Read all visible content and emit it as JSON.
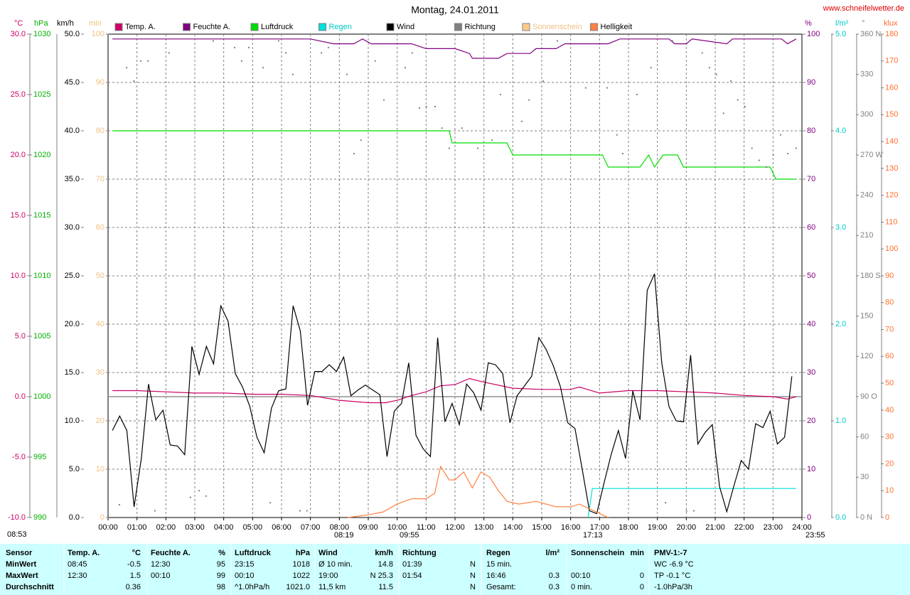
{
  "chart_data": {
    "type": "line",
    "title": "Montag, 24.01.2011",
    "source": "www.schneifelwetter.de",
    "legend": "top",
    "xlim": [
      0,
      24
    ],
    "xticks": [
      {
        "value": 0,
        "label": "00:00"
      },
      {
        "value": 1,
        "label": "01:00"
      },
      {
        "value": 2,
        "label": "02:00"
      },
      {
        "value": 3,
        "label": "03:00"
      },
      {
        "value": 4,
        "label": "04:00"
      },
      {
        "value": 5,
        "label": "05:00"
      },
      {
        "value": 6,
        "label": "06:00"
      },
      {
        "value": 7,
        "label": "07:00"
      },
      {
        "value": 8,
        "label": "08:00"
      },
      {
        "value": 9,
        "label": "09:00"
      },
      {
        "value": 10,
        "label": "10:00"
      },
      {
        "value": 11,
        "label": "11:00"
      },
      {
        "value": 12,
        "label": "12:00"
      },
      {
        "value": 13,
        "label": "13:00"
      },
      {
        "value": 14,
        "label": "14:00"
      },
      {
        "value": 15,
        "label": "15:00"
      },
      {
        "value": 16,
        "label": "16:00"
      },
      {
        "value": 17,
        "label": "17:00"
      },
      {
        "value": 18,
        "label": "18:00"
      },
      {
        "value": 19,
        "label": "19:00"
      },
      {
        "value": 20,
        "label": "20:00"
      },
      {
        "value": 21,
        "label": "21:00"
      },
      {
        "value": 22,
        "label": "22:00"
      },
      {
        "value": 23,
        "label": "23:00"
      },
      {
        "value": 24,
        "label": "24:00"
      }
    ],
    "xgrid": true,
    "yaxes": [
      {
        "label": "°C",
        "color": "#cc0066",
        "lim": [
          -10,
          30
        ],
        "zero_line": true,
        "ticks": [
          {
            "value": -10,
            "label": "-10.0"
          },
          {
            "value": -5,
            "label": "-5.0"
          },
          {
            "value": 0,
            "label": "0.0"
          },
          {
            "value": 5,
            "label": "5.0"
          },
          {
            "value": 10,
            "label": "10.0"
          },
          {
            "value": 15,
            "label": "15.0"
          },
          {
            "value": 20,
            "label": "20.0"
          },
          {
            "value": 25,
            "label": "25.0"
          },
          {
            "value": 30,
            "label": "30.0"
          }
        ]
      },
      {
        "label": "hPa",
        "color": "#00b000",
        "lim": [
          990,
          1030
        ],
        "ticks": [
          990,
          995,
          1000,
          1005,
          1010,
          1015,
          1020,
          1025,
          1030
        ]
      },
      {
        "label": "km/h",
        "color": "#000000",
        "lim": [
          0,
          50
        ],
        "grid": true,
        "ticks": [
          {
            "value": 0,
            "label": "0.0"
          },
          {
            "value": 5,
            "label": "5.0"
          },
          {
            "value": 10,
            "label": "10.0"
          },
          {
            "value": 15,
            "label": "15.0"
          },
          {
            "value": 20,
            "label": "20.0"
          },
          {
            "value": 25,
            "label": "25.0"
          },
          {
            "value": 30,
            "label": "30.0"
          },
          {
            "value": 35,
            "label": "35.0"
          },
          {
            "value": 40,
            "label": "40.0"
          },
          {
            "value": 45,
            "label": "45.0"
          },
          {
            "value": 50,
            "label": "50.0"
          }
        ]
      },
      {
        "label": "min",
        "color": "#f0c080",
        "lim": [
          0,
          100
        ],
        "ticks": [
          0,
          10,
          20,
          30,
          40,
          50,
          60,
          70,
          80,
          90,
          100
        ]
      },
      {
        "label": "%",
        "color": "#800080",
        "lim": [
          0,
          100
        ],
        "ticks": [
          0,
          10,
          20,
          30,
          40,
          50,
          60,
          70,
          80,
          90,
          100
        ]
      },
      {
        "label": "l/m²",
        "color": "#00c8c8",
        "lim": [
          0,
          5
        ],
        "ticks": [
          {
            "value": 0,
            "label": "0.0"
          },
          {
            "value": 1,
            "label": "1.0"
          },
          {
            "value": 2,
            "label": "2.0"
          },
          {
            "value": 3,
            "label": "3.0"
          },
          {
            "value": 4,
            "label": "4.0"
          },
          {
            "value": 5,
            "label": "5.0"
          }
        ]
      },
      {
        "label": "°",
        "color": "#808080",
        "lim": [
          0,
          360
        ],
        "ticks": [
          {
            "value": 0,
            "label": "0 N"
          },
          30,
          60,
          {
            "value": 90,
            "label": "90 O"
          },
          120,
          150,
          {
            "value": 180,
            "label": "180 S"
          },
          210,
          240,
          {
            "value": 270,
            "label": "270 W"
          },
          300,
          330,
          {
            "value": 360,
            "label": "360 N"
          }
        ]
      },
      {
        "label": "klux",
        "color": "#ff7030",
        "lim": [
          0,
          180
        ],
        "ticks": [
          0,
          10,
          20,
          30,
          40,
          50,
          60,
          70,
          80,
          90,
          100,
          110,
          120,
          130,
          140,
          150,
          160,
          170,
          180
        ]
      }
    ],
    "series": [
      {
        "name": "Temp. A.",
        "color": "#cc0066",
        "axis": 0,
        "style": "line",
        "x": [
          0.15,
          1,
          2,
          3,
          4,
          5,
          6,
          7,
          8,
          9,
          9.6,
          10,
          10.5,
          11,
          11.5,
          12,
          12.5,
          13,
          14,
          15,
          16,
          16.3,
          17,
          18,
          19,
          20,
          21,
          22,
          23,
          23.5,
          23.8
        ],
        "values": [
          0.5,
          0.5,
          0.4,
          0.3,
          0.3,
          0.2,
          0.2,
          0.1,
          -0.3,
          -0.5,
          -0.5,
          -0.3,
          0.1,
          0.4,
          0.9,
          1.0,
          1.5,
          1.2,
          0.7,
          0.6,
          0.6,
          0.8,
          0.3,
          0.5,
          0.5,
          0.4,
          0.3,
          0.1,
          0.0,
          -0.2,
          0.0
        ]
      },
      {
        "name": "Feuchte A.",
        "color": "#800080",
        "axis": 4,
        "style": "line",
        "x": [
          0.15,
          7.0,
          7.8,
          8.5,
          8.8,
          9.1,
          10.5,
          11.0,
          12.0,
          12.5,
          12.6,
          13.5,
          13.8,
          14.6,
          14.8,
          15.5,
          15.8,
          17.3,
          17.7,
          19.4,
          19.6,
          20.0,
          20.2,
          21.4,
          21.6,
          23.3,
          23.5,
          23.8
        ],
        "values": [
          99,
          99,
          98,
          98,
          99,
          98,
          98,
          97,
          97,
          96,
          95,
          95,
          96,
          96,
          97,
          97,
          98,
          98,
          99,
          99,
          98,
          98,
          99,
          98,
          99,
          99,
          98,
          99
        ]
      },
      {
        "name": "Luftdruck",
        "color": "#00dd00",
        "axis": 1,
        "style": "line",
        "x": [
          0.15,
          11.8,
          11.9,
          13.8,
          14.0,
          17.1,
          17.3,
          18.4,
          18.7,
          18.9,
          19.2,
          19.7,
          19.9,
          22.9,
          23.1,
          23.8
        ],
        "values": [
          1022,
          1022,
          1021,
          1021,
          1020,
          1020,
          1019,
          1019,
          1020,
          1019,
          1020,
          1020,
          1019,
          1019,
          1018,
          1018
        ]
      },
      {
        "name": "Regen",
        "color": "#00e0e0",
        "axis": 5,
        "style": "line",
        "x": [
          16.6,
          16.75,
          23.8
        ],
        "values": [
          0.0,
          0.3,
          0.3
        ]
      },
      {
        "name": "Wind",
        "color": "#000000",
        "axis": 2,
        "style": "line",
        "x": [
          0.15,
          0.4,
          0.65,
          0.9,
          1.15,
          1.4,
          1.65,
          1.9,
          2.15,
          2.4,
          2.65,
          2.9,
          3.15,
          3.4,
          3.65,
          3.9,
          4.15,
          4.4,
          4.65,
          4.9,
          5.15,
          5.4,
          5.65,
          5.9,
          6.15,
          6.4,
          6.65,
          6.9,
          7.15,
          7.4,
          7.65,
          7.9,
          8.15,
          8.4,
          8.65,
          8.9,
          9.15,
          9.4,
          9.65,
          9.9,
          10.15,
          10.4,
          10.65,
          10.9,
          11.15,
          11.4,
          11.65,
          11.9,
          12.15,
          12.4,
          12.65,
          12.9,
          13.15,
          13.4,
          13.65,
          13.9,
          14.15,
          14.4,
          14.65,
          14.9,
          15.15,
          15.4,
          15.65,
          15.9,
          16.15,
          16.4,
          16.65,
          16.9,
          17.15,
          17.4,
          17.65,
          17.9,
          18.15,
          18.4,
          18.65,
          18.9,
          19.15,
          19.4,
          19.65,
          19.9,
          20.15,
          20.4,
          20.65,
          20.9,
          21.15,
          21.4,
          21.65,
          21.9,
          22.15,
          22.4,
          22.65,
          22.9,
          23.15,
          23.4,
          23.65
        ],
        "values": [
          9.0,
          10.5,
          9.0,
          1.1,
          6.1,
          13.8,
          10.1,
          11.1,
          7.5,
          7.4,
          6.5,
          17.7,
          14.8,
          17.7,
          15.9,
          21.9,
          20.3,
          14.9,
          13.5,
          11.5,
          8.3,
          6.7,
          11.3,
          13.1,
          13.3,
          21.9,
          19.3,
          11.6,
          15.1,
          15.1,
          15.8,
          15.1,
          16.6,
          12.6,
          13.2,
          13.7,
          13.2,
          12.7,
          6.3,
          11.0,
          11.8,
          16.0,
          8.5,
          7.1,
          6.3,
          18.6,
          9.9,
          11.8,
          9.6,
          13.8,
          12.9,
          11.1,
          16.0,
          15.8,
          14.9,
          9.8,
          12.6,
          13.6,
          14.6,
          18.6,
          17.4,
          15.7,
          13.5,
          9.8,
          9.2,
          5.0,
          0.7,
          0.4,
          3.5,
          6.5,
          9.0,
          6.1,
          13.1,
          10.1,
          23.5,
          25.2,
          16.0,
          11.5,
          10.0,
          9.9,
          16.8,
          7.6,
          8.8,
          9.6,
          3.2,
          0.6,
          3.3,
          5.9,
          5.0,
          9.7,
          9.3,
          11.0,
          7.6,
          8.3,
          14.6
        ]
      },
      {
        "name": "Richtung",
        "color": "#808080",
        "axis": 6,
        "style": "dots",
        "x": [
          0.39,
          0.64,
          0.89,
          1.13,
          1.38,
          1.62,
          2.11,
          2.85,
          3.15,
          3.39,
          3.64,
          4.38,
          4.62,
          4.87,
          5.36,
          5.61,
          5.9,
          6.15,
          6.39,
          6.64,
          6.88,
          7.38,
          7.62,
          8.26,
          8.51,
          8.75,
          9.24,
          9.54,
          10.28,
          10.52,
          10.77,
          11.01,
          11.31,
          11.55,
          11.8,
          12.24,
          12.79,
          13.28,
          13.57,
          14.31,
          14.56,
          15.05,
          15.54,
          16.52,
          17.26,
          17.6,
          17.8,
          18.29,
          18.78,
          19.28,
          19.52,
          20.01,
          20.26,
          20.55,
          20.8,
          21.04,
          21.29,
          21.54,
          21.78,
          22.03,
          22.27,
          22.52,
          22.77,
          23.01,
          23.26,
          23.51,
          23.8
        ],
        "values": [
          9.5,
          335,
          325,
          340,
          340,
          5,
          346,
          15,
          20,
          16,
          355,
          350,
          340,
          350,
          335,
          11,
          355,
          346,
          330,
          5,
          5,
          346,
          350,
          330,
          271,
          281,
          340,
          311,
          335,
          346,
          305,
          306,
          306,
          290,
          275,
          290,
          275,
          281,
          315,
          295,
          311,
          325,
          355,
          320,
          320,
          285,
          271,
          315,
          335,
          11,
          355,
          5,
          5,
          346,
          335,
          330,
          301,
          325,
          311,
          306,
          275,
          266,
          261,
          270,
          285,
          271,
          275
        ]
      },
      {
        "name": "Sonnenschein",
        "color": "#ffcc88",
        "axis": 3,
        "style": "line",
        "x": [],
        "values": []
      },
      {
        "name": "Helligkeit",
        "color": "#ff8040",
        "axis": 7,
        "style": "line",
        "x": [
          8.3,
          9,
          9.5,
          10,
          10.5,
          11,
          11.3,
          11.5,
          11.8,
          12,
          12.3,
          12.6,
          12.9,
          13.2,
          13.5,
          13.8,
          14.2,
          14.8,
          15.5,
          16,
          16.3,
          16.7,
          17.1,
          17.3
        ],
        "values": [
          0,
          1,
          2,
          5,
          7,
          7,
          9,
          19,
          14,
          14,
          17,
          11,
          17,
          15,
          10,
          6,
          5,
          6,
          4,
          4,
          5,
          3,
          1,
          0
        ]
      }
    ],
    "sun_times": [
      "08:53",
      "08:19",
      "09:55",
      "17:13",
      "23:55"
    ]
  },
  "table": {
    "groups": [
      {
        "header": {
          "l": "Sensor"
        },
        "rows": [
          {
            "l": "MinWert"
          },
          {
            "l": "MaxWert"
          },
          {
            "l": "Durchschnitt"
          }
        ]
      },
      {
        "header": {
          "l": "Temp. A.",
          "r": "°C"
        },
        "rows": [
          {
            "l": "08:45",
            "r": "-0.5"
          },
          {
            "l": "12:30",
            "r": "1.5"
          },
          {
            "r": "0.36"
          }
        ]
      },
      {
        "header": {
          "l": "Feuchte A.",
          "r": "%"
        },
        "rows": [
          {
            "l": "12:30",
            "r": "95"
          },
          {
            "l": "00:10",
            "r": "99"
          },
          {
            "r": "98"
          }
        ]
      },
      {
        "header": {
          "l": "Luftdruck",
          "r": "hPa"
        },
        "rows": [
          {
            "l": "23:15",
            "r": "1018"
          },
          {
            "l": "00:10",
            "r": "1022"
          },
          {
            "l": "^1.0hPa/h",
            "r": "1021.0"
          }
        ]
      },
      {
        "header": {
          "l": "Wind",
          "r": "km/h"
        },
        "rows": [
          {
            "l": "Ø 10 min.",
            "r": "14.8"
          },
          {
            "l": "19:00",
            "r": "N 25.3"
          },
          {
            "l": "11,5 km",
            "r": "11.5"
          }
        ]
      },
      {
        "header": {
          "l": "Richtung"
        },
        "rows": [
          {
            "l": "01:39",
            "r": "N"
          },
          {
            "l": "01:54",
            "r": "N"
          },
          {
            "r": "N"
          }
        ]
      },
      {
        "header": {
          "l": "Regen",
          "r": "l/m²"
        },
        "rows": [
          {
            "l": "15 min."
          },
          {
            "l": "16:46",
            "r": "0.3"
          },
          {
            "l": "Gesamt:",
            "r": "0.3"
          }
        ]
      },
      {
        "header": {
          "l": "Sonnenschein",
          "r": "min"
        },
        "rows": [
          {},
          {
            "l": "00:10",
            "r": "0"
          },
          {
            "l": "0 min.",
            "r": "0"
          }
        ]
      },
      {
        "header": {
          "l": "PMV-1:-7"
        },
        "rows": [
          {
            "l": "WC -6.9 °C"
          },
          {
            "l": "TP -0.1 °C"
          },
          {
            "l": "-1.0hPa/3h"
          }
        ]
      }
    ]
  }
}
